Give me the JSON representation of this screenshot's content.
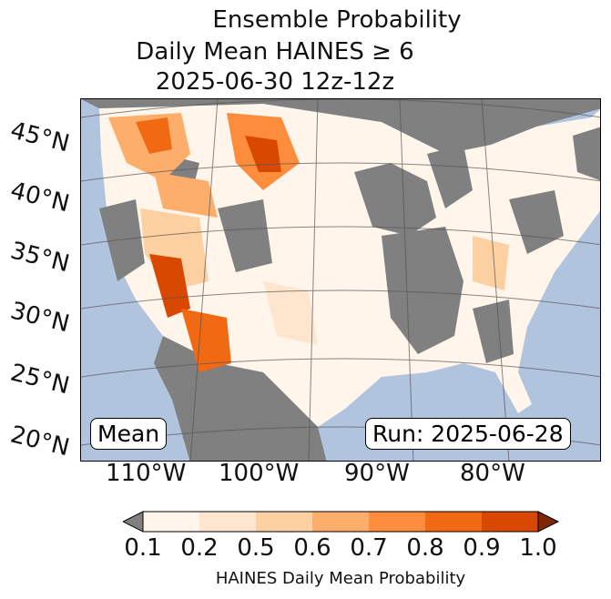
{
  "title": {
    "line1": "Ensemble Probability",
    "line2": "Daily Mean HAINES ≥ 6",
    "line3": "2025-06-30 12z-12z"
  },
  "map": {
    "lat_labels": [
      "45°N",
      "40°N",
      "35°N",
      "30°N",
      "25°N",
      "20°N"
    ],
    "lon_labels": [
      "110°W",
      "100°W",
      "90°W",
      "80°W"
    ],
    "left_box": "Mean",
    "right_box": "Run: 2025-06-28",
    "ocean_color": "#b0c4de",
    "below_threshold_color": "#808080"
  },
  "colorbar": {
    "ticks": [
      "0.1",
      "0.2",
      "0.5",
      "0.6",
      "0.7",
      "0.8",
      "0.9",
      "1.0"
    ],
    "colors": [
      "#fff5eb",
      "#fee6ce",
      "#fdd0a2",
      "#fdae6b",
      "#fd8d3c",
      "#f16913",
      "#d94801"
    ],
    "under_color": "#808080",
    "over_color": "#7f2704",
    "label": "HAINES Daily Mean Probability"
  }
}
